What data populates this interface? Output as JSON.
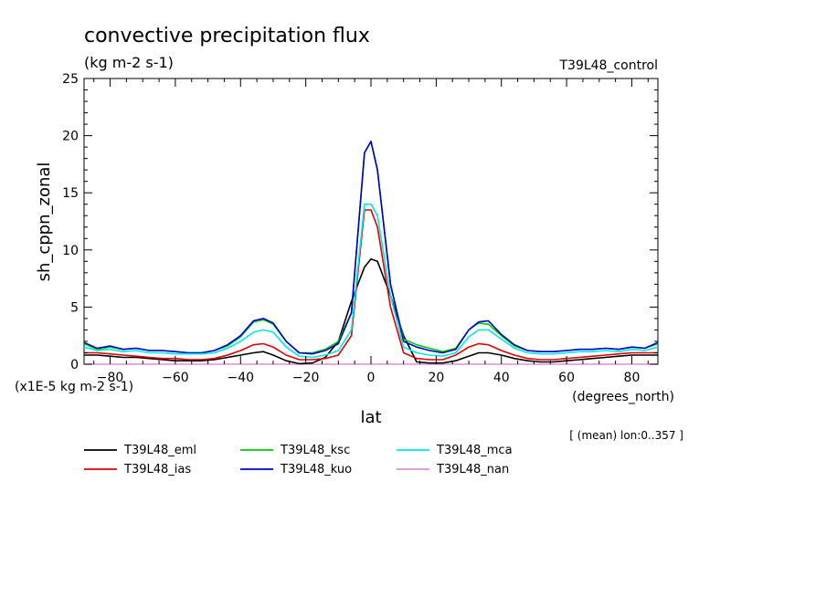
{
  "chart_data": {
    "type": "line",
    "title": "convective precipitation flux",
    "subtitle": "(kg m-2 s-1)",
    "run_label": "T39L48_control",
    "xlabel": "lat",
    "xunits": "(degrees_north)",
    "ylabel": "sh_cppn_zonal",
    "yunits": "(x1E-5 kg m-2 s-1)",
    "note": "[ (mean) lon:0..357 ]",
    "xlim": [
      -88,
      88
    ],
    "ylim": [
      0,
      25
    ],
    "xticks": [
      -80,
      -60,
      -40,
      -20,
      0,
      20,
      40,
      60,
      80
    ],
    "yticks": [
      0,
      5,
      10,
      15,
      20,
      25
    ],
    "x": [
      -88,
      -84,
      -80,
      -76,
      -72,
      -68,
      -64,
      -60,
      -56,
      -52,
      -48,
      -44,
      -40,
      -36,
      -33,
      -30,
      -26,
      -22,
      -18,
      -14,
      -10,
      -6,
      -2,
      0,
      2,
      6,
      10,
      14,
      18,
      22,
      26,
      30,
      33,
      36,
      40,
      44,
      48,
      52,
      56,
      60,
      64,
      68,
      72,
      76,
      80,
      84,
      88
    ],
    "series": [
      {
        "name": "T39L48_eml",
        "color": "#000000",
        "values": [
          0.8,
          0.8,
          0.7,
          0.6,
          0.6,
          0.5,
          0.4,
          0.3,
          0.3,
          0.3,
          0.4,
          0.6,
          0.8,
          1.0,
          1.1,
          0.8,
          0.3,
          0.05,
          0.1,
          0.6,
          2.0,
          5.5,
          8.5,
          9.2,
          9.0,
          6.0,
          2.5,
          0.2,
          0.1,
          0.1,
          0.3,
          0.7,
          1.0,
          1.0,
          0.8,
          0.5,
          0.3,
          0.2,
          0.2,
          0.3,
          0.4,
          0.5,
          0.6,
          0.7,
          0.8,
          0.8,
          0.8
        ]
      },
      {
        "name": "T39L48_ias",
        "color": "#e00000",
        "values": [
          1.0,
          1.0,
          0.9,
          0.8,
          0.7,
          0.6,
          0.5,
          0.5,
          0.4,
          0.4,
          0.5,
          0.8,
          1.2,
          1.7,
          1.8,
          1.5,
          0.8,
          0.4,
          0.4,
          0.5,
          0.8,
          2.5,
          13.5,
          13.5,
          12.0,
          5.0,
          1.0,
          0.5,
          0.4,
          0.4,
          0.8,
          1.5,
          1.8,
          1.7,
          1.2,
          0.8,
          0.5,
          0.4,
          0.4,
          0.5,
          0.6,
          0.7,
          0.8,
          0.9,
          1.0,
          1.0,
          1.0
        ]
      },
      {
        "name": "T39L48_ksc",
        "color": "#00cc00",
        "values": [
          1.8,
          1.3,
          1.5,
          1.3,
          1.4,
          1.2,
          1.2,
          1.1,
          1.0,
          1.0,
          1.2,
          1.6,
          2.4,
          3.7,
          3.9,
          3.5,
          2.0,
          1.0,
          1.0,
          1.3,
          2.0,
          4.5,
          18.5,
          19.5,
          17.0,
          7.0,
          2.2,
          1.7,
          1.4,
          1.1,
          1.4,
          3.0,
          3.6,
          3.5,
          2.5,
          1.6,
          1.2,
          1.1,
          1.1,
          1.2,
          1.3,
          1.3,
          1.4,
          1.3,
          1.5,
          1.4,
          1.8
        ]
      },
      {
        "name": "T39L48_kuo",
        "color": "#0000c8",
        "values": [
          1.9,
          1.4,
          1.6,
          1.3,
          1.4,
          1.2,
          1.2,
          1.1,
          1.0,
          1.0,
          1.2,
          1.7,
          2.5,
          3.8,
          4.0,
          3.6,
          2.0,
          1.0,
          0.9,
          1.2,
          1.8,
          4.5,
          18.5,
          19.5,
          17.0,
          7.0,
          2.0,
          1.5,
          1.2,
          1.0,
          1.3,
          3.0,
          3.7,
          3.8,
          2.6,
          1.7,
          1.2,
          1.1,
          1.1,
          1.2,
          1.3,
          1.3,
          1.4,
          1.3,
          1.5,
          1.4,
          1.9
        ]
      },
      {
        "name": "T39L48_mca",
        "color": "#00e8e8",
        "values": [
          1.5,
          1.2,
          1.3,
          1.1,
          1.2,
          1.0,
          1.0,
          0.9,
          0.9,
          0.9,
          1.0,
          1.4,
          2.0,
          2.8,
          3.0,
          2.8,
          1.5,
          0.7,
          0.6,
          0.8,
          1.2,
          3.0,
          14.0,
          14.0,
          13.0,
          6.0,
          1.5,
          1.0,
          0.8,
          0.7,
          1.0,
          2.4,
          3.0,
          3.0,
          2.2,
          1.4,
          1.0,
          0.9,
          0.9,
          1.0,
          1.1,
          1.1,
          1.2,
          1.1,
          1.3,
          1.2,
          1.5
        ]
      },
      {
        "name": "T39L48_nan",
        "color": "#e090d8",
        "values": [
          0,
          0,
          0,
          0,
          0,
          0,
          0,
          0,
          0,
          0,
          0,
          0,
          0,
          0,
          0,
          0,
          0,
          0,
          0,
          0,
          0,
          0,
          0,
          0,
          0,
          0,
          0,
          0,
          0,
          0,
          0,
          0,
          0,
          0,
          0,
          0,
          0,
          0,
          0,
          0,
          0,
          0,
          0,
          0,
          0,
          0,
          0
        ]
      }
    ]
  }
}
